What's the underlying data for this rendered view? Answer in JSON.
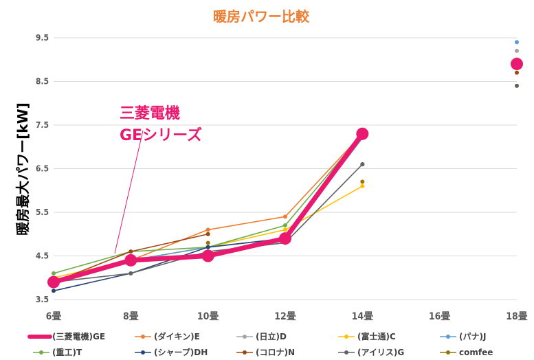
{
  "chart_data": {
    "type": "line",
    "title": "暖房パワー比較",
    "xlabel": "",
    "ylabel": "暖房最大パワー[kW]",
    "categories": [
      "6畳",
      "8畳",
      "10畳",
      "12畳",
      "14畳",
      "16畳",
      "18畳"
    ],
    "ylim": [
      3.5,
      9.5
    ],
    "yticks": [
      "3.5",
      "4.5",
      "5.5",
      "6.5",
      "7.5",
      "8.5",
      "9.5"
    ],
    "grid": true,
    "legend_position": "bottom",
    "annotation": {
      "lines": [
        "三菱電機",
        "GEシリーズ"
      ],
      "color": "#e8196e"
    },
    "series": [
      {
        "name": "(ダイキン)E",
        "color": "#ed7d31",
        "values": [
          3.9,
          4.4,
          5.1,
          5.4,
          7.3,
          null,
          9.0
        ]
      },
      {
        "name": "(日立)D",
        "color": "#a5a5a5",
        "values": [
          3.9,
          4.4,
          4.7,
          4.9,
          7.3,
          null,
          9.2
        ]
      },
      {
        "name": "(富士通)C",
        "color": "#ffc000",
        "values": [
          4.0,
          4.4,
          4.7,
          5.1,
          6.1,
          null,
          8.4
        ]
      },
      {
        "name": "(パナ)J",
        "color": "#5b9bd5",
        "values": [
          3.9,
          4.4,
          4.7,
          4.9,
          7.2,
          null,
          9.4
        ]
      },
      {
        "name": "(重工)T",
        "color": "#70ad47",
        "values": [
          4.1,
          4.6,
          4.7,
          5.2,
          7.3,
          null,
          9.0
        ]
      },
      {
        "name": "(シャープ)DH",
        "color": "#264478",
        "values": [
          3.7,
          4.1,
          4.7,
          4.9,
          7.3,
          null,
          null
        ]
      },
      {
        "name": "(コロナ)N",
        "color": "#9e480e",
        "values": [
          3.9,
          4.6,
          5.0,
          null,
          6.6,
          null,
          8.7
        ]
      },
      {
        "name": "(アイリス)G",
        "color": "#636363",
        "values": [
          3.9,
          4.1,
          4.6,
          4.8,
          6.6,
          null,
          8.4
        ]
      },
      {
        "name": "comfee",
        "color": "#997300",
        "values": [
          null,
          null,
          4.8,
          null,
          6.2,
          null,
          null
        ]
      },
      {
        "name": "(三菱電機)GE",
        "color": "#e8196e",
        "values": [
          3.9,
          4.4,
          4.5,
          4.9,
          7.3,
          null,
          8.9
        ],
        "highlight": true
      }
    ],
    "legend_order": [
      9,
      0,
      1,
      2,
      3,
      4,
      5,
      6,
      7,
      8
    ]
  }
}
